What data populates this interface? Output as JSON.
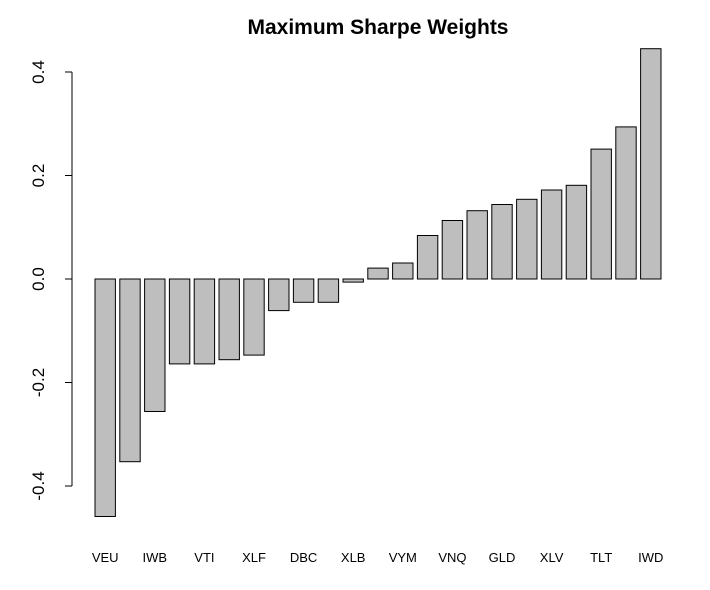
{
  "chart_data": {
    "type": "bar",
    "title": "Maximum Sharpe Weights",
    "xlabel": "",
    "ylabel": "",
    "categories": [
      "VEU",
      "",
      "IWB",
      "",
      "VTI",
      "",
      "XLF",
      "",
      "DBC",
      "",
      "XLB",
      "",
      "VYM",
      "",
      "VNQ",
      "",
      "GLD",
      "",
      "XLV",
      "",
      "TLT",
      "",
      "IWD"
    ],
    "values": [
      -0.459,
      -0.353,
      -0.256,
      -0.164,
      -0.164,
      -0.156,
      -0.147,
      -0.061,
      -0.045,
      -0.045,
      -0.006,
      0.021,
      0.031,
      0.084,
      0.113,
      0.132,
      0.144,
      0.154,
      0.172,
      0.181,
      0.251,
      0.294,
      0.445
    ],
    "yticks": [
      "-0.4",
      "-0.2",
      "0.0",
      "0.2",
      "0.4"
    ],
    "ylim": [
      -0.46,
      0.445
    ],
    "grid": false,
    "bar_color": "#bebebe",
    "bar_border_color": "#000000"
  }
}
